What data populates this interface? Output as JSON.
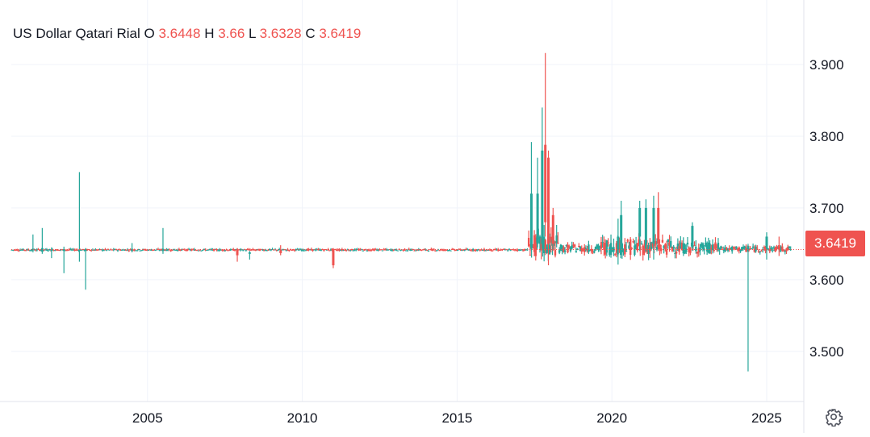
{
  "legend": {
    "symbol": "US Dollar Qatari Rial",
    "open_label": "O",
    "open": "3.6448",
    "high_label": "H",
    "high": "3.66",
    "low_label": "L",
    "low": "3.6328",
    "close_label": "C",
    "close": "3.6419"
  },
  "last_price_label": "3.6419",
  "colors": {
    "up": "#26a69a",
    "down": "#ef5350",
    "grid": "#f0f3fa",
    "text": "#131722"
  },
  "settings_icon": "gear-icon",
  "chart_data": {
    "type": "candlestick",
    "title": "US Dollar Qatari Rial",
    "xlabel": "",
    "ylabel": "",
    "xlim": [
      2000.6,
      2026.2
    ],
    "ylim": [
      3.43,
      3.99
    ],
    "x_ticks": [
      2005,
      2010,
      2015,
      2020,
      2025
    ],
    "x_tick_labels": [
      "2005",
      "2010",
      "2015",
      "2020",
      "2025"
    ],
    "y_ticks": [
      3.5,
      3.6,
      3.7,
      3.8,
      3.9
    ],
    "y_tick_labels": [
      "3.500",
      "3.600",
      "3.700",
      "3.800",
      "3.900"
    ],
    "last_price": 3.6419,
    "grid": true,
    "baseline": 3.641,
    "notable_candles": [
      {
        "x": 2001.3,
        "open": 3.641,
        "high": 3.663,
        "low": 3.638,
        "close": 3.643
      },
      {
        "x": 2001.6,
        "open": 3.639,
        "high": 3.672,
        "low": 3.636,
        "close": 3.644
      },
      {
        "x": 2001.9,
        "open": 3.64,
        "high": 3.645,
        "low": 3.63,
        "close": 3.642
      },
      {
        "x": 2002.3,
        "open": 3.64,
        "high": 3.646,
        "low": 3.609,
        "close": 3.642
      },
      {
        "x": 2002.8,
        "open": 3.64,
        "high": 3.75,
        "low": 3.625,
        "close": 3.642
      },
      {
        "x": 2003.0,
        "open": 3.64,
        "high": 3.644,
        "low": 3.586,
        "close": 3.642
      },
      {
        "x": 2004.5,
        "open": 3.641,
        "high": 3.651,
        "low": 3.638,
        "close": 3.643
      },
      {
        "x": 2005.5,
        "open": 3.64,
        "high": 3.672,
        "low": 3.636,
        "close": 3.643
      },
      {
        "x": 2007.9,
        "open": 3.642,
        "high": 3.644,
        "low": 3.625,
        "close": 3.634
      },
      {
        "x": 2008.3,
        "open": 3.636,
        "high": 3.64,
        "low": 3.628,
        "close": 3.638
      },
      {
        "x": 2009.3,
        "open": 3.641,
        "high": 3.648,
        "low": 3.634,
        "close": 3.637
      },
      {
        "x": 2011.0,
        "open": 3.642,
        "high": 3.644,
        "low": 3.616,
        "close": 3.62
      },
      {
        "x": 2017.4,
        "open": 3.645,
        "high": 3.792,
        "low": 3.64,
        "close": 3.72
      },
      {
        "x": 2017.6,
        "open": 3.65,
        "high": 3.77,
        "low": 3.645,
        "close": 3.72
      },
      {
        "x": 2017.75,
        "open": 3.65,
        "high": 3.84,
        "low": 3.645,
        "close": 3.78
      },
      {
        "x": 2017.85,
        "open": 3.788,
        "high": 3.916,
        "low": 3.66,
        "close": 3.68
      },
      {
        "x": 2017.95,
        "open": 3.77,
        "high": 3.78,
        "low": 3.62,
        "close": 3.65
      },
      {
        "x": 2018.1,
        "open": 3.69,
        "high": 3.7,
        "low": 3.64,
        "close": 3.65
      },
      {
        "x": 2020.2,
        "open": 3.642,
        "high": 3.685,
        "low": 3.621,
        "close": 3.66
      },
      {
        "x": 2020.3,
        "open": 3.645,
        "high": 3.71,
        "low": 3.64,
        "close": 3.69
      },
      {
        "x": 2020.9,
        "open": 3.66,
        "high": 3.71,
        "low": 3.64,
        "close": 3.7
      },
      {
        "x": 2021.1,
        "open": 3.65,
        "high": 3.712,
        "low": 3.64,
        "close": 3.7
      },
      {
        "x": 2021.35,
        "open": 3.65,
        "high": 3.717,
        "low": 3.628,
        "close": 3.7
      },
      {
        "x": 2021.5,
        "open": 3.7,
        "high": 3.722,
        "low": 3.64,
        "close": 3.65
      },
      {
        "x": 2022.6,
        "open": 3.645,
        "high": 3.68,
        "low": 3.64,
        "close": 3.675
      },
      {
        "x": 2024.4,
        "open": 3.642,
        "high": 3.65,
        "low": 3.472,
        "close": 3.646
      },
      {
        "x": 2025.0,
        "open": 3.645,
        "high": 3.666,
        "low": 3.628,
        "close": 3.66
      },
      {
        "x": 2025.4,
        "open": 3.648,
        "high": 3.66,
        "low": 3.633,
        "close": 3.6419
      }
    ]
  }
}
